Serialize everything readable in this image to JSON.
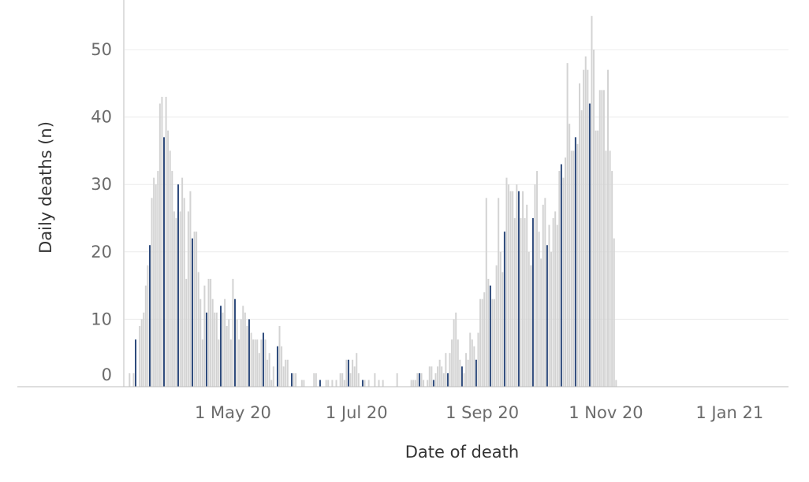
{
  "chart_data": {
    "type": "bar",
    "title": "",
    "xlabel": "Date of death",
    "ylabel": "Daily deaths (n)",
    "ylim": [
      0,
      56
    ],
    "yticks": [
      0,
      10,
      20,
      30,
      40,
      50
    ],
    "xticks": [
      "1 May 20",
      "1 Jul 20",
      "1 Sep 20",
      "1 Nov 20",
      "1 Jan 21"
    ],
    "x_start": "2020-03-11",
    "x_end": "2021-01-21",
    "grid": "horizontal",
    "bar_color": "#d3d3d3",
    "highlight_color": "#2f4b7c",
    "highlight_rule": "one highlighted (navy) bar per week",
    "values": [
      2,
      0,
      2,
      7,
      0,
      9,
      10,
      11,
      15,
      18,
      21,
      28,
      31,
      30,
      32,
      42,
      43,
      37,
      43,
      38,
      35,
      32,
      26,
      25,
      30,
      26,
      31,
      28,
      16,
      26,
      29,
      22,
      23,
      23,
      17,
      13,
      7,
      15,
      11,
      16,
      16,
      13,
      11,
      11,
      7,
      12,
      11,
      13,
      9,
      10,
      7,
      16,
      13,
      10,
      7,
      10,
      12,
      11,
      9,
      10,
      8,
      7,
      7,
      7,
      5,
      7,
      8,
      7,
      4,
      5,
      1,
      3,
      0,
      6,
      9,
      6,
      3,
      4,
      4,
      0,
      2,
      2,
      2,
      0,
      0,
      1,
      1,
      0,
      0,
      0,
      0,
      2,
      2,
      0,
      1,
      0,
      0,
      1,
      1,
      0,
      1,
      0,
      1,
      0,
      2,
      2,
      1,
      4,
      4,
      2,
      4,
      3,
      5,
      2,
      0,
      1,
      1,
      0,
      1,
      0,
      0,
      2,
      0,
      1,
      0,
      1,
      0,
      0,
      0,
      0,
      0,
      0,
      2,
      0,
      0,
      0,
      0,
      0,
      0,
      1,
      1,
      1,
      2,
      2,
      2,
      1,
      0,
      1,
      3,
      3,
      1,
      2,
      3,
      4,
      3,
      2,
      5,
      2,
      5,
      7,
      10,
      11,
      7,
      4,
      3,
      2,
      5,
      4,
      8,
      7,
      6,
      4,
      8,
      13,
      13,
      14,
      28,
      16,
      15,
      13,
      13,
      18,
      28,
      20,
      17,
      23,
      31,
      30,
      29,
      29,
      25,
      30,
      29,
      25,
      29,
      25,
      27,
      20,
      18,
      25,
      30,
      32,
      23,
      19,
      27,
      28,
      21,
      24,
      20,
      25,
      26,
      24,
      32,
      33,
      31,
      34,
      48,
      39,
      35,
      35,
      37,
      36,
      45,
      41,
      47,
      49,
      47,
      42,
      55,
      50,
      38,
      38,
      44,
      44,
      44,
      35,
      47,
      35,
      32,
      22,
      1
    ],
    "highlight_indices": [
      3,
      10,
      17,
      24,
      31,
      38,
      45,
      52,
      59,
      66,
      73,
      80,
      87,
      94,
      101,
      108,
      115,
      122,
      129,
      136,
      143,
      150,
      157,
      164,
      171,
      178,
      185,
      192,
      199,
      206,
      213,
      220,
      227
    ]
  }
}
